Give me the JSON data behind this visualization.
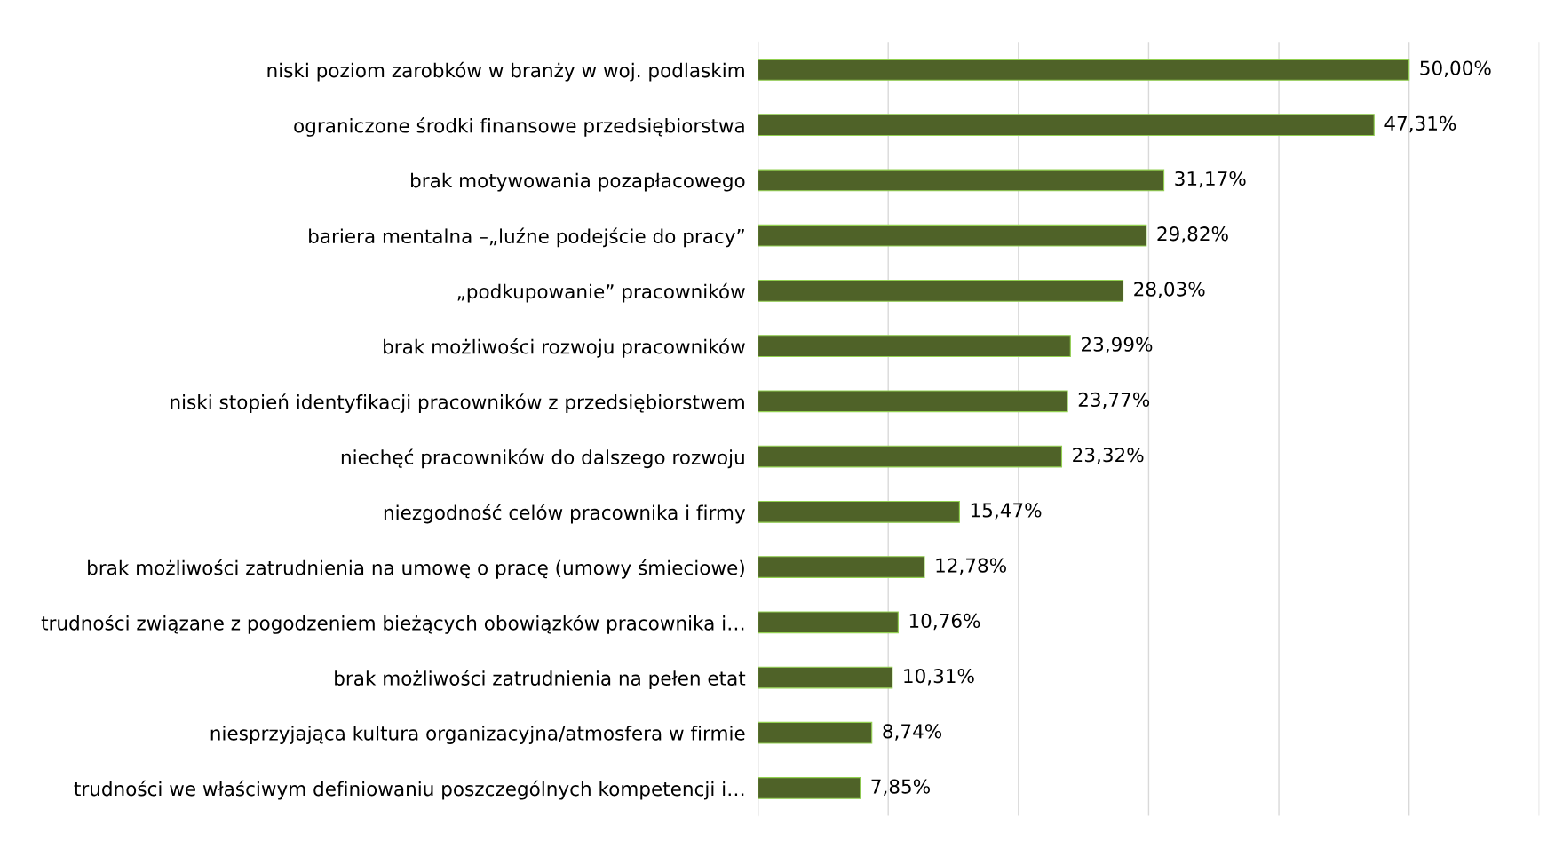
{
  "chart_data": {
    "type": "bar",
    "orientation": "horizontal",
    "categories": [
      "niski poziom zarobków w branży w woj. podlaskim",
      "ograniczone środki finansowe przedsiębiorstwa",
      "brak motywowania pozapłacowego",
      "bariera mentalna –„luźne podejście do pracy”",
      "„podkupowanie” pracowników",
      "brak możliwości rozwoju pracowników",
      "niski stopień identyfikacji pracowników z przedsiębiorstwem",
      "niechęć pracowników do dalszego rozwoju",
      "niezgodność celów pracownika i firmy",
      "brak możliwości zatrudnienia na umowę o pracę (umowy śmieciowe)",
      "trudności związane z pogodzeniem bieżących obowiązków pracownika i…",
      "brak możliwości zatrudnienia na pełen etat",
      "niesprzyjająca kultura organizacyjna/atmosfera w firmie",
      "trudności we właściwym definiowaniu poszczególnych kompetencji i…"
    ],
    "values": [
      50.0,
      47.31,
      31.17,
      29.82,
      28.03,
      23.99,
      23.77,
      23.32,
      15.47,
      12.78,
      10.76,
      10.31,
      8.74,
      7.85
    ],
    "value_labels": [
      "50,00%",
      "47,31%",
      "31,17%",
      "29,82%",
      "28,03%",
      "23,99%",
      "23,77%",
      "23,32%",
      "15,47%",
      "12,78%",
      "10,76%",
      "10,31%",
      "8,74%",
      "7,85%"
    ],
    "color": "#4f6228",
    "xlim": [
      0,
      60
    ],
    "xticks": [
      {
        "value": 0,
        "label": null
      },
      {
        "value": 10,
        "label": null
      },
      {
        "value": 20,
        "label": null
      },
      {
        "value": 30,
        "label": null
      },
      {
        "value": 40,
        "label": null
      },
      {
        "value": 50,
        "label": null
      },
      {
        "value": 60,
        "label": null
      }
    ],
    "grid": "x",
    "tick_labels": "y",
    "legend": false
  }
}
